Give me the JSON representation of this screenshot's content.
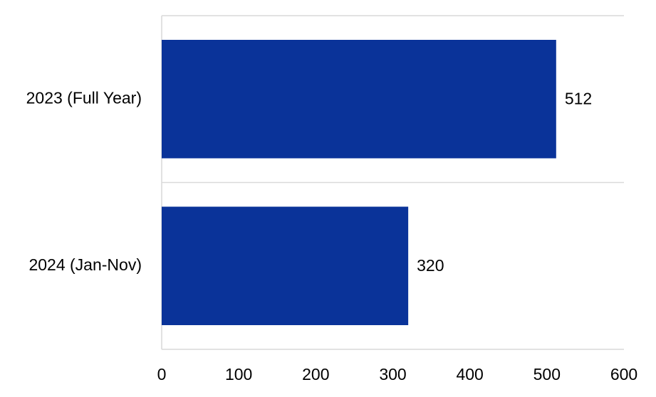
{
  "chart_data": {
    "type": "hbar",
    "categories": [
      "2023 (Full Year)",
      "2024 (Jan-Nov)"
    ],
    "values": [
      512,
      320
    ],
    "color": "#0a3399",
    "xlim": [
      0,
      600
    ],
    "xticks": [
      0,
      100,
      200,
      300,
      400,
      500,
      600
    ],
    "grid": false
  }
}
